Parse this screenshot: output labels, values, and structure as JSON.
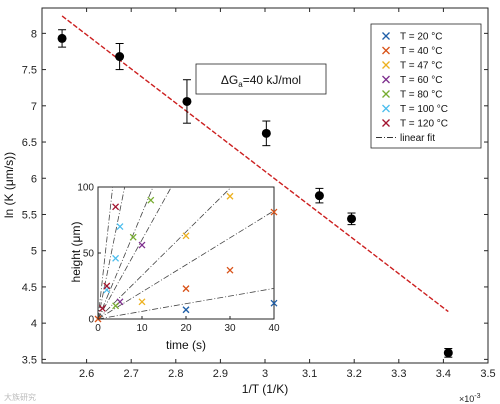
{
  "colors": {
    "fit_line": "#cc1f1f",
    "points": "#000000",
    "series": [
      "#1f5fa8",
      "#d95319",
      "#edb120",
      "#7e2f8e",
      "#77ac30",
      "#4dbeee",
      "#a2142f"
    ],
    "legend_fit": "#333333"
  },
  "annotation": {
    "prefix": "ΔG",
    "sub": "a",
    "suffix": "=40 kJ/mol"
  },
  "watermark": "大族研究",
  "chart_data": [
    {
      "type": "scatter",
      "xlabel": "1/T (1/K)",
      "ylabel": "ln (K  (μm/s))",
      "x_multiplier": "×10",
      "x_multiplier_exp": "-3",
      "xlim": [
        2.5,
        3.5
      ],
      "ylim": [
        3.45,
        8.35
      ],
      "xticks": [
        "2.6",
        "2.7",
        "2.8",
        "2.9",
        "3",
        "3.1",
        "3.2",
        "3.3",
        "3.4",
        "3.5"
      ],
      "yticks": [
        "3.5",
        "4",
        "4.5",
        "5",
        "5.5",
        "6",
        "6.5",
        "7",
        "7.5",
        "8"
      ],
      "grid": false,
      "points": [
        {
          "x": 2.545,
          "y": 7.93,
          "err": 0.12
        },
        {
          "x": 2.674,
          "y": 7.68,
          "err": 0.18
        },
        {
          "x": 2.825,
          "y": 7.06,
          "err": 0.3
        },
        {
          "x": 3.003,
          "y": 6.62,
          "err": 0.17
        },
        {
          "x": 3.122,
          "y": 5.76,
          "err": 0.1
        },
        {
          "x": 3.194,
          "y": 5.44,
          "err": 0.08
        },
        {
          "x": 3.411,
          "y": 3.59,
          "err": 0.06
        }
      ],
      "fit": {
        "x": [
          2.545,
          3.411
        ],
        "y": [
          8.24,
          4.16
        ]
      },
      "legend_position": "top-right",
      "legend": [
        "T = 20 °C",
        "T = 40 °C",
        "T = 47 °C",
        "T = 60 °C",
        "T = 80 °C",
        "T = 100 °C",
        "T = 120 °C",
        "linear fit"
      ]
    },
    {
      "type": "scatter",
      "xlabel": "time (s)",
      "ylabel": "height (μm)",
      "xlim": [
        0,
        40
      ],
      "ylim": [
        0,
        100
      ],
      "xticks": [
        "0",
        "10",
        "20",
        "30",
        "40"
      ],
      "yticks": [
        "0",
        "50",
        "100"
      ],
      "grid": false,
      "series": [
        {
          "name": "T = 20 °C",
          "slope": 0.58,
          "points": [
            [
              20,
              7
            ],
            [
              40,
              12
            ]
          ]
        },
        {
          "name": "T = 40 °C",
          "slope": 2.05,
          "points": [
            [
              20,
              23
            ],
            [
              30,
              37
            ],
            [
              40,
              81
            ]
          ]
        },
        {
          "name": "T = 47 °C",
          "slope": 3.3,
          "points": [
            [
              10,
              13
            ],
            [
              20,
              63
            ],
            [
              30,
              93
            ]
          ]
        },
        {
          "name": "T = 60 °C",
          "slope": 6.0,
          "points": [
            [
              5,
              13
            ],
            [
              10,
              56
            ]
          ]
        },
        {
          "name": "T = 80 °C",
          "slope": 8.0,
          "points": [
            [
              4,
              10
            ],
            [
              8,
              62
            ],
            [
              12,
              90
            ]
          ]
        },
        {
          "name": "T = 100 °C",
          "slope": 16.5,
          "points": [
            [
              2,
              22
            ],
            [
              4,
              46
            ],
            [
              5,
              70
            ]
          ]
        },
        {
          "name": "T = 120 °C",
          "slope": 30,
          "points": [
            [
              1,
              8
            ],
            [
              2,
              25
            ],
            [
              4,
              85
            ]
          ]
        }
      ]
    }
  ]
}
